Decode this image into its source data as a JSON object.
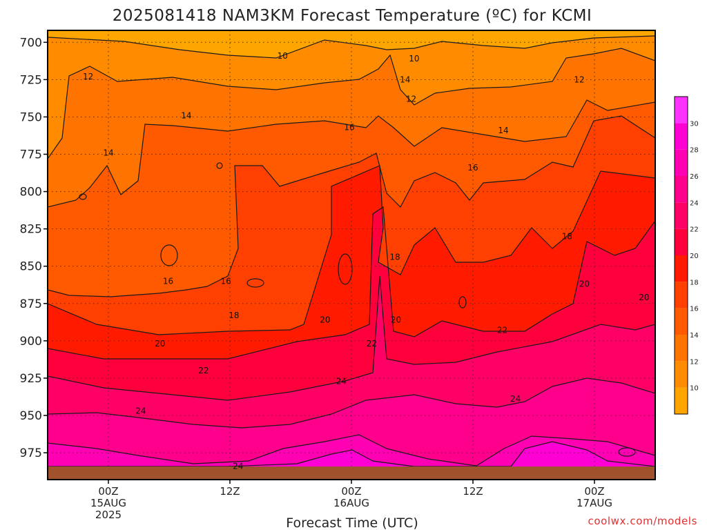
{
  "title": "2025081418 NAM3KM Forecast Temperature (ºC) for KCMI",
  "credit": "coolwx.com/models",
  "colors": {
    "ground": "#a0522d",
    "fill_levels": [
      "#ffa500",
      "#ff8c00",
      "#ff7300",
      "#ff5a00",
      "#ff4000",
      "#ff1a00",
      "#ff003c",
      "#ff0066",
      "#ff008c",
      "#ff00b2",
      "#ff00d4",
      "#ff33ff"
    ]
  },
  "chart_data": {
    "type": "heatmap",
    "title": "2025081418 NAM3KM Forecast Temperature (ºC) for KCMI",
    "xlabel": "Forecast Time (UTC)",
    "ylabel": "",
    "x_ticks": [
      {
        "hour": 6,
        "lines": [
          "00Z",
          "15AUG",
          "2025"
        ]
      },
      {
        "hour": 18,
        "lines": [
          "12Z"
        ]
      },
      {
        "hour": 30,
        "lines": [
          "00Z",
          "16AUG"
        ]
      },
      {
        "hour": 42,
        "lines": [
          "12Z"
        ]
      },
      {
        "hour": 54,
        "lines": [
          "00Z",
          "17AUG"
        ]
      }
    ],
    "xlim_hours": [
      0,
      60
    ],
    "y_ticks": [
      700,
      725,
      750,
      775,
      800,
      825,
      850,
      875,
      900,
      925,
      950,
      975
    ],
    "ylim_hpa": [
      692,
      993
    ],
    "grid": true,
    "colorbar": {
      "labels": [
        10,
        12,
        14,
        16,
        18,
        20,
        22,
        24,
        26,
        28,
        30
      ],
      "range": [
        8,
        32
      ],
      "step": 2
    },
    "contour_labels": [
      {
        "text": "10",
        "hour": 23.2,
        "hpa": 709
      },
      {
        "text": "10",
        "hour": 36.2,
        "hpa": 711
      },
      {
        "text": "12",
        "hour": 4.0,
        "hpa": 723
      },
      {
        "text": "12",
        "hour": 35.9,
        "hpa": 738
      },
      {
        "text": "12",
        "hour": 52.5,
        "hpa": 725
      },
      {
        "text": "14",
        "hour": 35.3,
        "hpa": 725
      },
      {
        "text": "14",
        "hour": 13.7,
        "hpa": 749
      },
      {
        "text": "14",
        "hour": 45.0,
        "hpa": 759
      },
      {
        "text": "14",
        "hour": 6.0,
        "hpa": 774
      },
      {
        "text": "16",
        "hour": 29.8,
        "hpa": 757
      },
      {
        "text": "16",
        "hour": 42.0,
        "hpa": 784
      },
      {
        "text": "16",
        "hour": 11.9,
        "hpa": 860
      },
      {
        "text": "16",
        "hour": 17.6,
        "hpa": 860
      },
      {
        "text": "18",
        "hour": 34.3,
        "hpa": 844
      },
      {
        "text": "18",
        "hour": 51.3,
        "hpa": 830
      },
      {
        "text": "18",
        "hour": 18.4,
        "hpa": 883
      },
      {
        "text": "20",
        "hour": 11.1,
        "hpa": 902
      },
      {
        "text": "20",
        "hour": 27.4,
        "hpa": 886
      },
      {
        "text": "20",
        "hour": 34.4,
        "hpa": 886
      },
      {
        "text": "20",
        "hour": 53.0,
        "hpa": 862
      },
      {
        "text": "20",
        "hour": 58.9,
        "hpa": 871
      },
      {
        "text": "22",
        "hour": 32.0,
        "hpa": 902
      },
      {
        "text": "22",
        "hour": 15.4,
        "hpa": 920
      },
      {
        "text": "22",
        "hour": 44.9,
        "hpa": 893
      },
      {
        "text": "24",
        "hour": 29.0,
        "hpa": 927
      },
      {
        "text": "24",
        "hour": 9.2,
        "hpa": 947
      },
      {
        "text": "24",
        "hour": 46.2,
        "hpa": 939
      },
      {
        "text": "24",
        "hour": 18.8,
        "hpa": 984
      }
    ]
  }
}
